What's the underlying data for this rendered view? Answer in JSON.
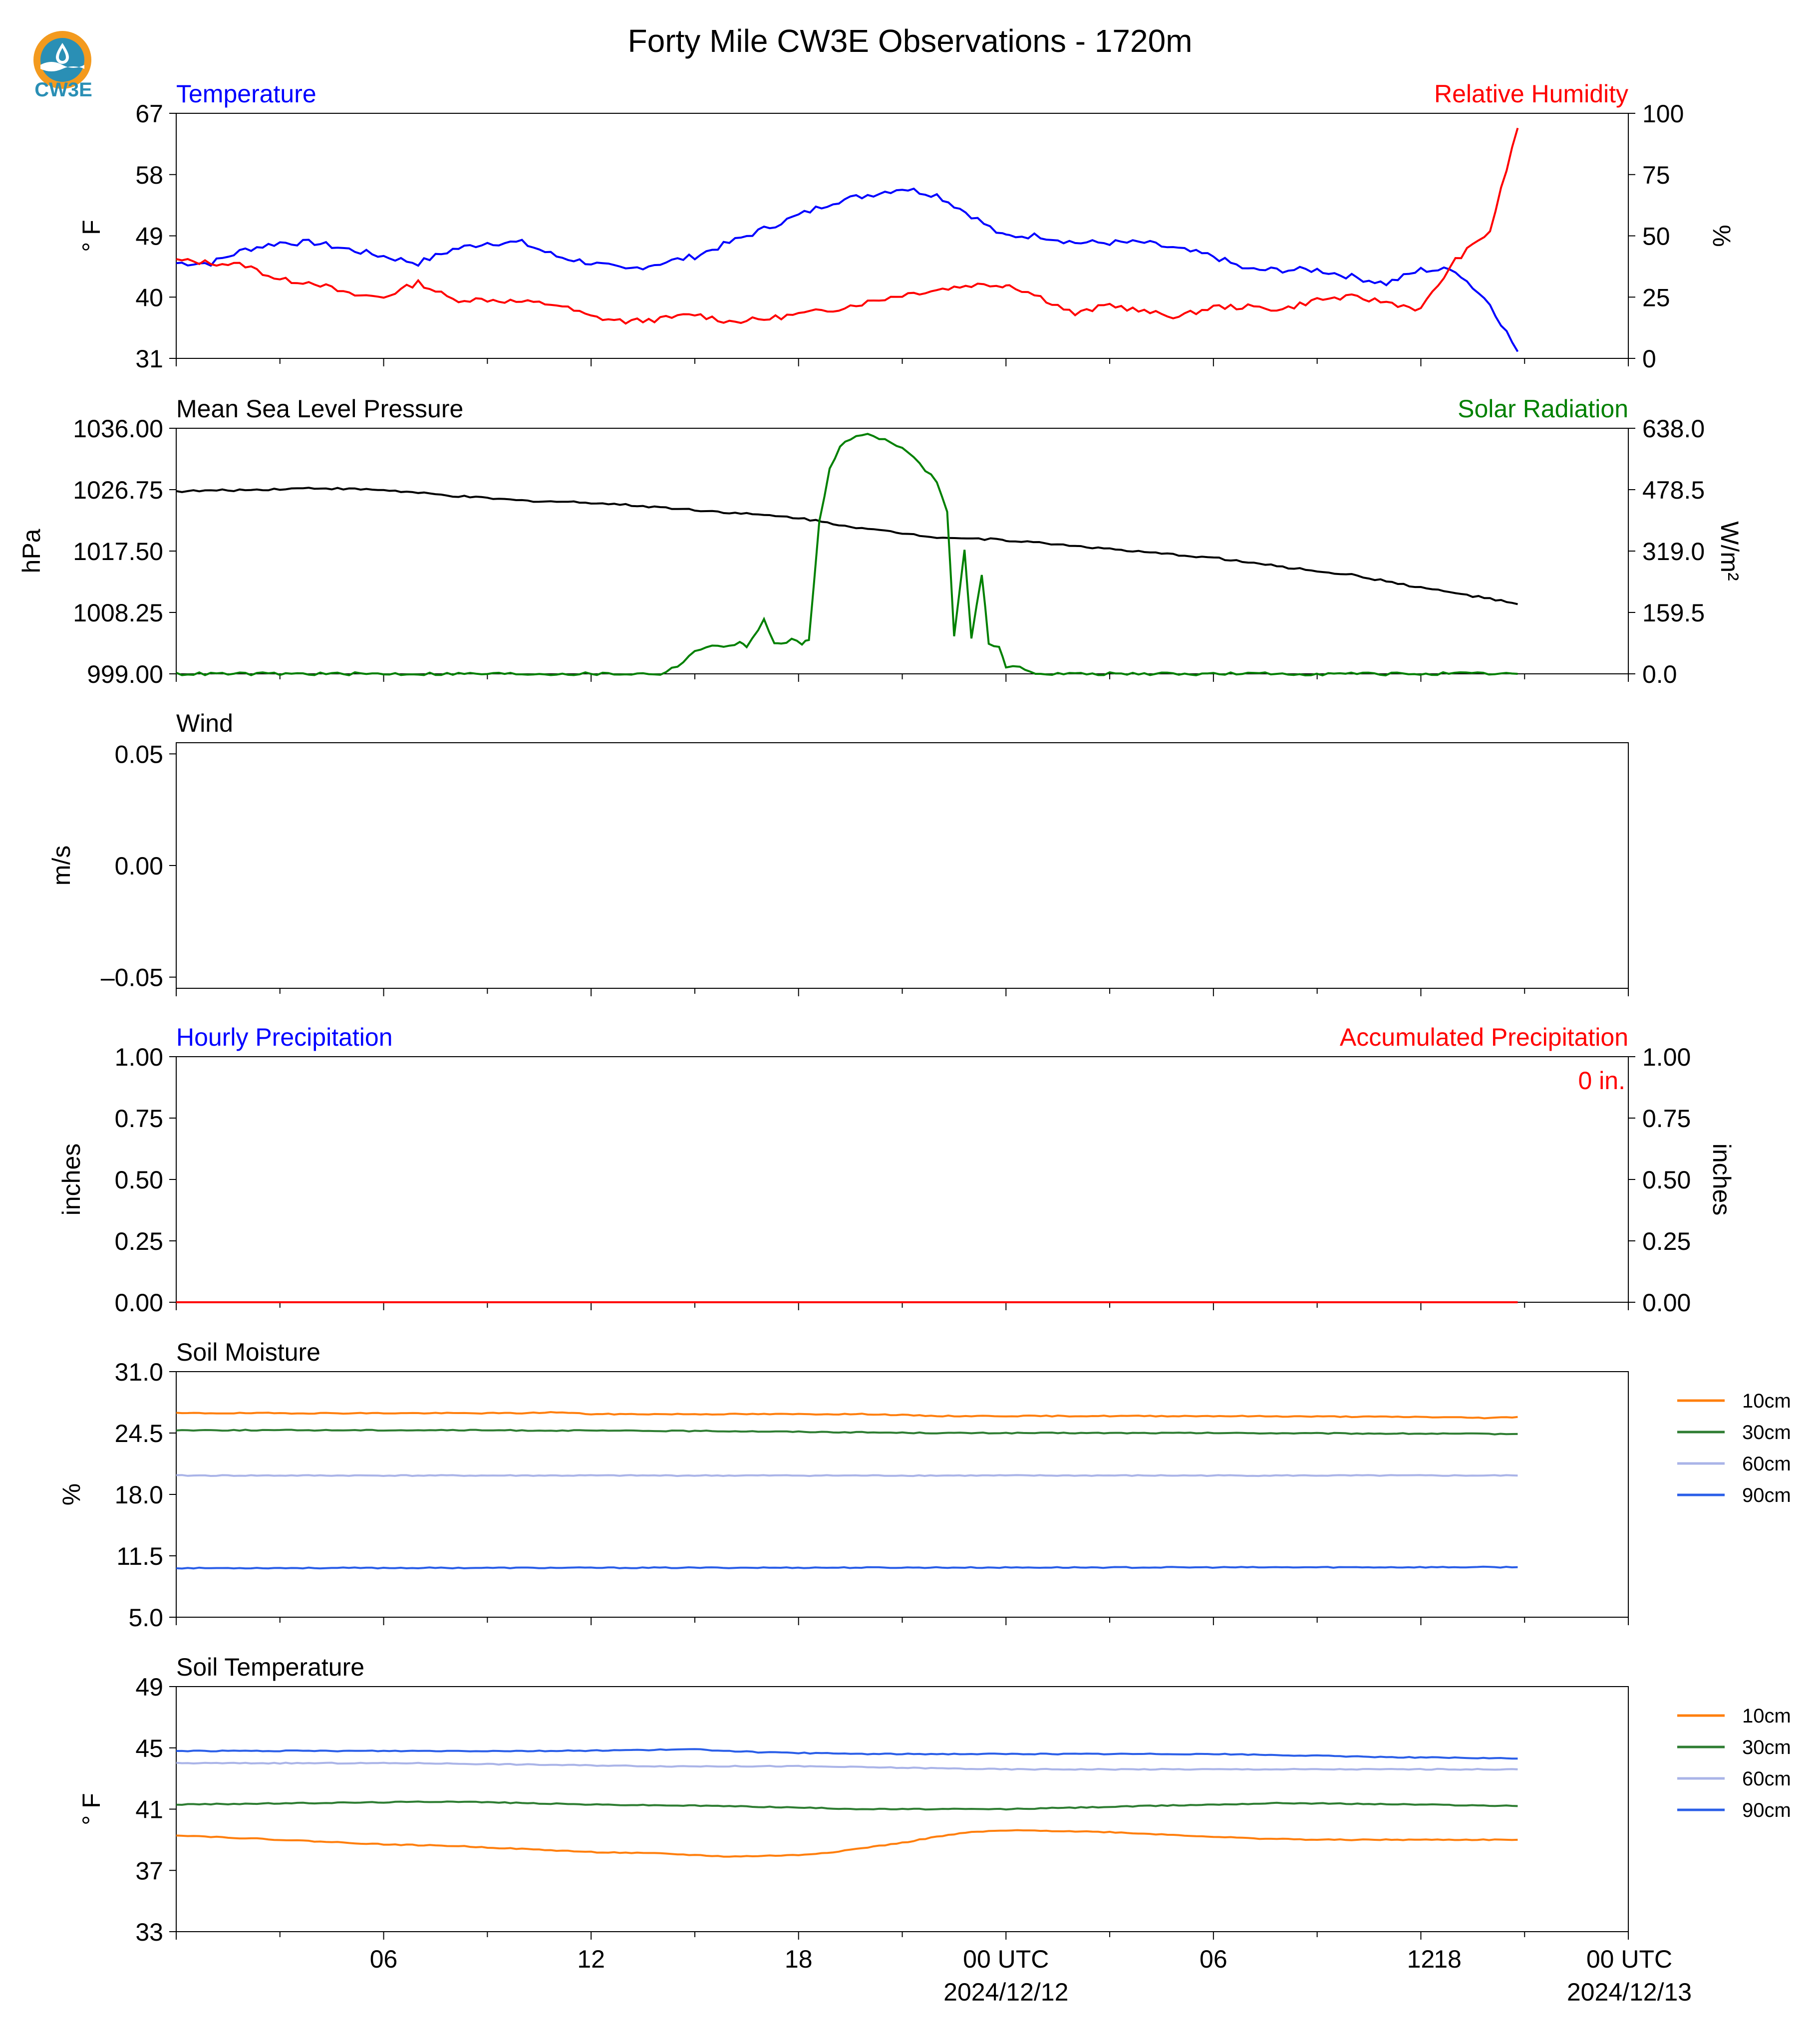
{
  "colors": {
    "blue": "#0000ff",
    "red": "#ff0000",
    "green": "#008000",
    "black": "#000000",
    "orange": "#ff7f0e",
    "dkgreen": "#2e7d32",
    "lavender": "#aab4e8",
    "royal": "#2a5ee8",
    "logo_orange": "#f39a1e",
    "logo_teal": "#2a8fb5"
  },
  "logo": {
    "text": "CW3E"
  },
  "figure": {
    "title": "Forty Mile CW3E Observations - 1720m"
  },
  "time_axis": {
    "tick_labels": [
      "06",
      "12",
      "18",
      "00 UTC",
      "06",
      "12",
      "18",
      "00 UTC"
    ],
    "date_labels": [
      "2024/12/12",
      "2024/12/13"
    ]
  },
  "chart_data": [
    {
      "type": "line",
      "id": "temperature_rh",
      "left_title": "Temperature",
      "right_title": "Relative Humidity",
      "ylabel": "° F",
      "ylabel_right": "%",
      "ylim": [
        31,
        67
      ],
      "yticks": [
        "31",
        "40",
        "49",
        "58",
        "67"
      ],
      "ylim_right": [
        0,
        100
      ],
      "yticks_right": [
        "0",
        "25",
        "50",
        "75",
        "100"
      ],
      "series": [
        {
          "name": "Temperature",
          "color": "blue",
          "axis": "left",
          "x_hours": [
            0,
            1,
            2,
            3,
            4,
            5,
            6,
            7,
            8,
            9,
            10,
            11,
            12,
            13,
            14,
            15,
            16,
            17,
            18,
            19,
            20,
            21,
            22,
            23,
            23.9,
            24.1,
            25,
            26,
            27,
            28,
            29,
            30,
            31,
            32,
            33,
            34,
            35,
            36,
            37,
            38,
            38.8
          ],
          "values": [
            45,
            45,
            47,
            48,
            48,
            47,
            46,
            45,
            47,
            48,
            48,
            46,
            45,
            44,
            45,
            46,
            48,
            50,
            52,
            54,
            55,
            56,
            55,
            52,
            49,
            49,
            49,
            48,
            48,
            48,
            47,
            46,
            44,
            44,
            44,
            43,
            42,
            44,
            44,
            39,
            32
          ]
        },
        {
          "name": "Relative Humidity",
          "color": "red",
          "axis": "right",
          "x_hours": [
            0,
            1,
            2,
            3,
            4,
            5,
            6,
            7,
            8,
            9,
            10,
            11,
            12,
            13,
            14,
            15,
            16,
            17,
            18,
            19,
            20,
            21,
            22,
            23,
            23.9,
            24.1,
            25,
            26,
            27,
            28,
            29,
            30,
            31,
            32,
            33,
            34,
            35,
            36,
            37,
            38,
            38.8
          ],
          "values": [
            40,
            39,
            38,
            32,
            31,
            26,
            25,
            31,
            24,
            24,
            23,
            22,
            17,
            15,
            16,
            18,
            15,
            16,
            18,
            20,
            23,
            26,
            28,
            30,
            30,
            30,
            25,
            18,
            22,
            19,
            17,
            21,
            21,
            20,
            24,
            25,
            23,
            20,
            40,
            52,
            94
          ]
        }
      ]
    },
    {
      "type": "line",
      "id": "pressure_solar",
      "left_title": "Mean Sea Level Pressure",
      "right_title": "Solar Radiation",
      "ylabel": "hPa",
      "ylabel_right": "W/m²",
      "ylim": [
        999.0,
        1036.0
      ],
      "yticks": [
        "999.00",
        "1008.25",
        "1017.50",
        "1026.75",
        "1036.00"
      ],
      "ylim_right": [
        0,
        638.0
      ],
      "yticks_right": [
        "0.0",
        "159.5",
        "319.0",
        "478.5",
        "638.0"
      ],
      "series": [
        {
          "name": "Mean Sea Level Pressure",
          "color": "black",
          "axis": "left",
          "x_hours": [
            0,
            2,
            4,
            6,
            8,
            10,
            12,
            14,
            16,
            18,
            20,
            22,
            23.9,
            24.1,
            26,
            28,
            30,
            32,
            34,
            36,
            38,
            38.8
          ],
          "values": [
            1026.5,
            1026.7,
            1027,
            1026.7,
            1025.8,
            1025.1,
            1024.8,
            1024.1,
            1023.3,
            1022.5,
            1020.8,
            1019.6,
            1019.2,
            1019.1,
            1018.3,
            1017.3,
            1016.5,
            1015.1,
            1013.9,
            1012.0,
            1010.3,
            1009.5
          ]
        },
        {
          "name": "Solar Radiation",
          "color": "green",
          "axis": "right",
          "x_hours": [
            0,
            14,
            14.5,
            15,
            15.5,
            16,
            16.3,
            16.5,
            17,
            17.3,
            17.5,
            17.8,
            18.1,
            18.3,
            18.6,
            18.9,
            19.2,
            19.5,
            20,
            21,
            22,
            22.3,
            22.5,
            22.8,
            23,
            23.3,
            23.5,
            23.8,
            24,
            24.4,
            25,
            30,
            38.8
          ],
          "values": [
            0,
            0,
            20,
            60,
            70,
            75,
            80,
            70,
            140,
            80,
            75,
            90,
            80,
            85,
            400,
            530,
            590,
            610,
            625,
            590,
            500,
            420,
            100,
            320,
            90,
            260,
            80,
            70,
            20,
            15,
            0,
            0,
            0
          ]
        }
      ]
    },
    {
      "type": "line",
      "id": "wind",
      "left_title": "Wind",
      "ylabel": "m/s",
      "ylim": [
        -0.055,
        0.055
      ],
      "yticks": [
        "–0.05",
        "0.00",
        "0.05"
      ],
      "series": []
    },
    {
      "type": "line",
      "id": "precip",
      "left_title": "Hourly Precipitation",
      "right_title": "Accumulated Precipitation",
      "ylabel": "inches",
      "ylabel_right": "inches",
      "ylim": [
        0,
        1
      ],
      "yticks": [
        "0.00",
        "0.25",
        "0.50",
        "0.75",
        "1.00"
      ],
      "ylim_right": [
        0,
        1
      ],
      "yticks_right": [
        "0.00",
        "0.25",
        "0.50",
        "0.75",
        "1.00"
      ],
      "annotation": "0 in.",
      "series": [
        {
          "name": "Hourly Precipitation",
          "color": "blue",
          "axis": "left",
          "x_hours": [
            0,
            38.8
          ],
          "values": [
            0,
            0
          ]
        },
        {
          "name": "Accumulated Precipitation",
          "color": "red",
          "axis": "right",
          "x_hours": [
            0,
            38.8
          ],
          "values": [
            0,
            0
          ]
        }
      ]
    },
    {
      "type": "line",
      "id": "soil_moisture",
      "left_title": "Soil Moisture",
      "ylabel": "%",
      "ylim": [
        5,
        31
      ],
      "yticks": [
        "5.0",
        "11.5",
        "18.0",
        "24.5",
        "31.0"
      ],
      "series": [
        {
          "name": "10cm",
          "color": "orange",
          "x_hours": [
            0,
            10,
            11,
            12,
            16,
            20,
            22,
            30,
            36,
            38,
            38.8
          ],
          "values": [
            26.6,
            26.6,
            26.7,
            26.5,
            26.5,
            26.5,
            26.3,
            26.3,
            26.2,
            26.1,
            26.2
          ]
        },
        {
          "name": "30cm",
          "color": "dkgreen",
          "x_hours": [
            0,
            8,
            16,
            22,
            30,
            38.8
          ],
          "values": [
            24.8,
            24.8,
            24.7,
            24.5,
            24.5,
            24.4
          ]
        },
        {
          "name": "60cm",
          "color": "lavender",
          "x_hours": [
            0,
            38.8
          ],
          "values": [
            20.0,
            20.0
          ]
        },
        {
          "name": "90cm",
          "color": "royal",
          "x_hours": [
            0,
            38.8
          ],
          "values": [
            10.2,
            10.3
          ]
        }
      ],
      "legend": [
        "10cm",
        "30cm",
        "60cm",
        "90cm"
      ]
    },
    {
      "type": "line",
      "id": "soil_temperature",
      "left_title": "Soil Temperature",
      "ylabel": "° F",
      "ylim": [
        33,
        49
      ],
      "yticks": [
        "33",
        "37",
        "41",
        "45",
        "49"
      ],
      "series": [
        {
          "name": "10cm",
          "color": "orange",
          "x_hours": [
            0,
            2,
            4,
            6,
            8,
            10,
            12,
            14,
            16,
            18,
            19,
            20,
            21,
            22,
            23,
            24,
            25,
            27,
            29,
            31,
            33,
            38.8
          ],
          "values": [
            39.3,
            39.1,
            38.9,
            38.7,
            38.6,
            38.4,
            38.2,
            38.1,
            37.9,
            38.0,
            38.2,
            38.5,
            38.8,
            39.2,
            39.5,
            39.6,
            39.6,
            39.5,
            39.3,
            39.1,
            39.0,
            39.0
          ]
        },
        {
          "name": "30cm",
          "color": "dkgreen",
          "x_hours": [
            0,
            4,
            8,
            12,
            16,
            20,
            24,
            28,
            32,
            36,
            38.8
          ],
          "values": [
            41.3,
            41.4,
            41.5,
            41.3,
            41.2,
            41.0,
            41.0,
            41.2,
            41.4,
            41.3,
            41.2
          ]
        },
        {
          "name": "60cm",
          "color": "lavender",
          "x_hours": [
            0,
            7,
            14,
            18,
            24,
            30,
            38.8
          ],
          "values": [
            44.0,
            44.0,
            43.8,
            43.8,
            43.6,
            43.6,
            43.6
          ]
        },
        {
          "name": "90cm",
          "color": "royal",
          "x_hours": [
            0,
            11,
            15,
            16,
            17,
            20,
            26,
            30,
            35,
            38.8
          ],
          "values": [
            44.8,
            44.8,
            44.9,
            44.8,
            44.7,
            44.6,
            44.6,
            44.6,
            44.4,
            44.3
          ]
        }
      ],
      "legend": [
        "10cm",
        "30cm",
        "60cm",
        "90cm"
      ]
    }
  ]
}
